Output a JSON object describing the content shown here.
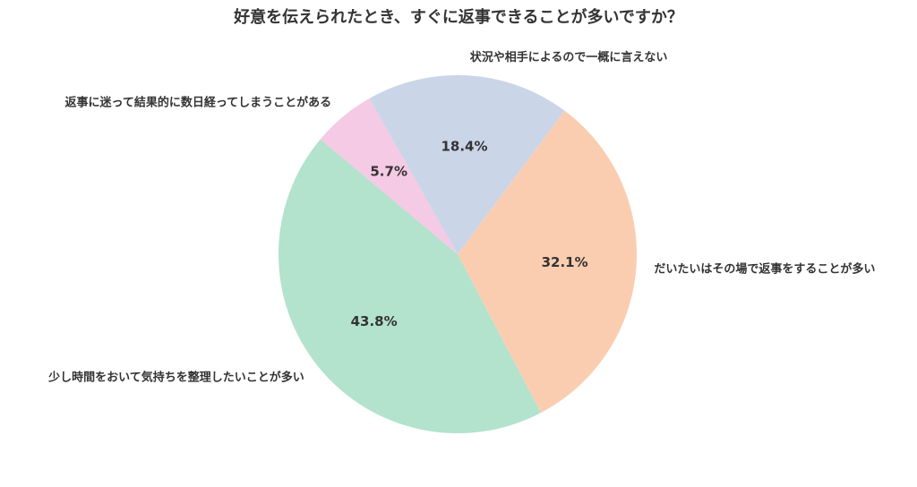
{
  "chart_data": {
    "type": "pie",
    "title": "好意を伝えられたとき、すぐに返事できることが多いですか？",
    "categories": [
      "だいたいはその場で返事をすることが多い",
      "少し時間をおいて気持ちを整理したいことが多い",
      "返事に迷って結果的に数日経ってしまうことがある",
      "状況や相手によるので一概に言えない"
    ],
    "values": [
      32.1,
      43.8,
      5.7,
      18.4
    ],
    "value_labels": [
      "32.1%",
      "43.8%",
      "5.7%",
      "18.4%"
    ],
    "colors": [
      "#fbcdb0",
      "#b3e2cd",
      "#f4cae4",
      "#cbd5e8"
    ]
  }
}
